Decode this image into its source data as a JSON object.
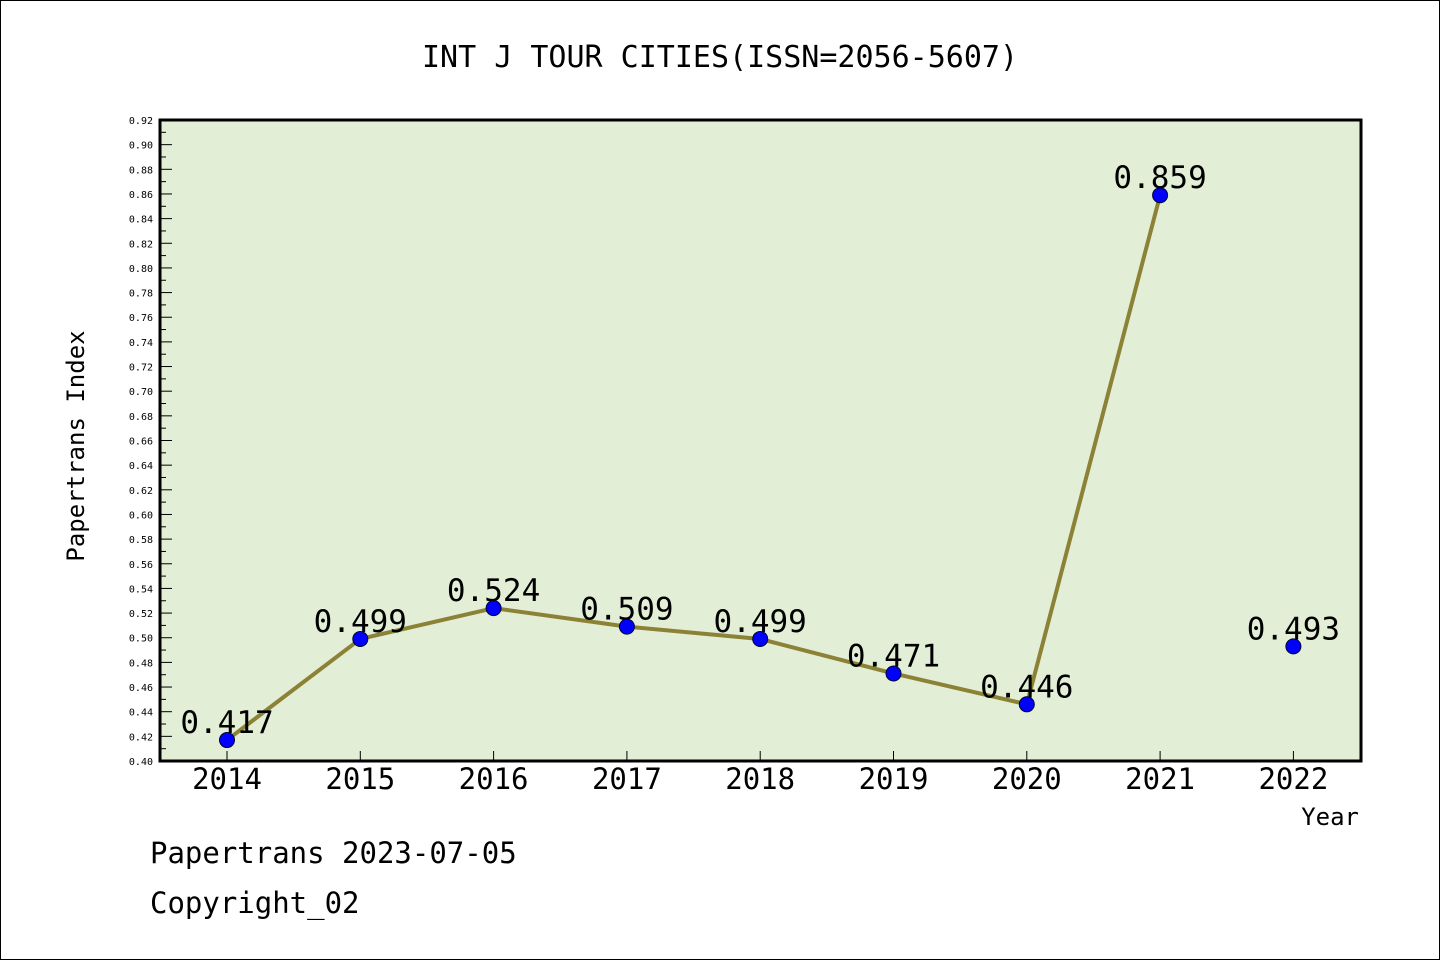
{
  "chart_data": {
    "type": "line",
    "title": "INT J TOUR CITIES(ISSN=2056-5607)",
    "xlabel": "Year",
    "ylabel": "Papertrans Index",
    "categories": [
      "2014",
      "2015",
      "2016",
      "2017",
      "2018",
      "2019",
      "2020",
      "2021",
      "2022"
    ],
    "series": [
      {
        "values": [
          0.417,
          0.499,
          0.524,
          0.509,
          0.499,
          0.471,
          0.446,
          0.859,
          0.493
        ],
        "labels": [
          "0.417",
          "0.499",
          "0.524",
          "0.509",
          "0.499",
          "0.471",
          "0.446",
          "0.859",
          "0.493"
        ]
      }
    ],
    "connected_points": 8,
    "ylim": [
      0.4,
      0.92
    ],
    "y_major_step": 0.02,
    "y_minor_step": 0.01,
    "y_tick_labels": [
      "0.40",
      "0.42",
      "0.44",
      "0.46",
      "0.48",
      "0.50",
      "0.52",
      "0.54",
      "0.56",
      "0.58",
      "0.60",
      "0.62",
      "0.64",
      "0.66",
      "0.68",
      "0.70",
      "0.72",
      "0.74",
      "0.76",
      "0.78",
      "0.80",
      "0.82",
      "0.84",
      "0.86",
      "0.88",
      "0.90",
      "0.92"
    ],
    "grid": false,
    "legend": "none",
    "colors": {
      "plot_background": "#e2efd6",
      "line": "#8b8236",
      "marker": "#0000ff",
      "axis": "#000000"
    }
  },
  "footer": {
    "line1": "Papertrans 2023-07-05",
    "line2": "Copyright_02"
  }
}
